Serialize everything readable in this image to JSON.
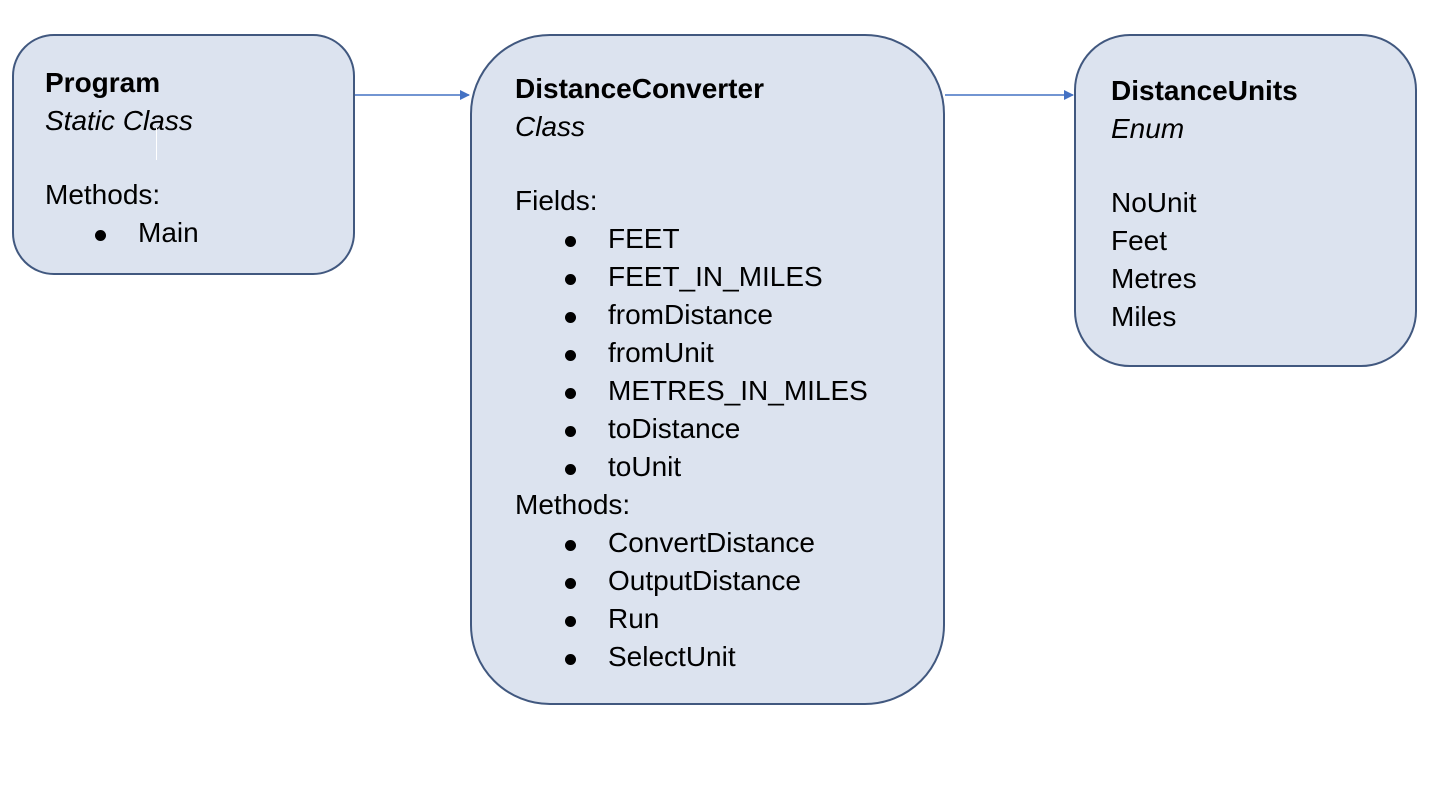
{
  "program": {
    "name": "Program",
    "kind": "Static Class",
    "methods_label": "Methods:",
    "methods": [
      "Main"
    ]
  },
  "converter": {
    "name": "DistanceConverter",
    "kind": "Class",
    "fields_label": "Fields:",
    "fields": [
      "FEET",
      "FEET_IN_MILES",
      "fromDistance",
      "fromUnit",
      "METRES_IN_MILES",
      "toDistance",
      "toUnit"
    ],
    "methods_label": "Methods:",
    "methods": [
      "ConvertDistance",
      "OutputDistance",
      "Run",
      "SelectUnit"
    ]
  },
  "units": {
    "name": "DistanceUnits",
    "kind": "Enum",
    "values": [
      "NoUnit",
      "Feet",
      "Metres",
      "Miles"
    ]
  },
  "colors": {
    "box_fill": "#dce3ef",
    "box_border": "#41587f",
    "arrow": "#4472c4"
  }
}
